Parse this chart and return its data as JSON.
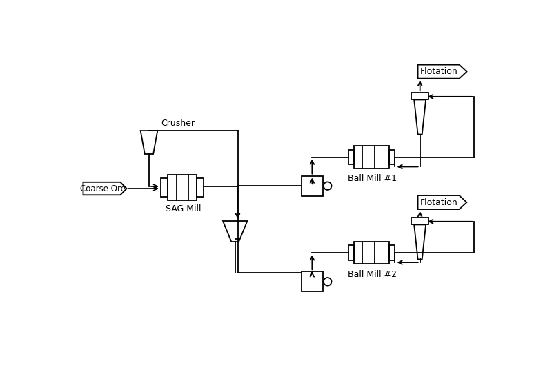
{
  "bg_color": "#ffffff",
  "line_color": "#000000",
  "text_color": "#000000",
  "line_width": 1.3,
  "figsize": [
    8.0,
    5.3
  ],
  "dpi": 100,
  "labels": {
    "coarse_ore": "Coarse Ore",
    "crusher": "Crusher",
    "sag_mill": "SAG Mill",
    "ball_mill_1": "Ball Mill #1",
    "ball_mill_2": "Ball Mill #2",
    "flotation_1": "Flotation",
    "flotation_2": "Flotation"
  }
}
